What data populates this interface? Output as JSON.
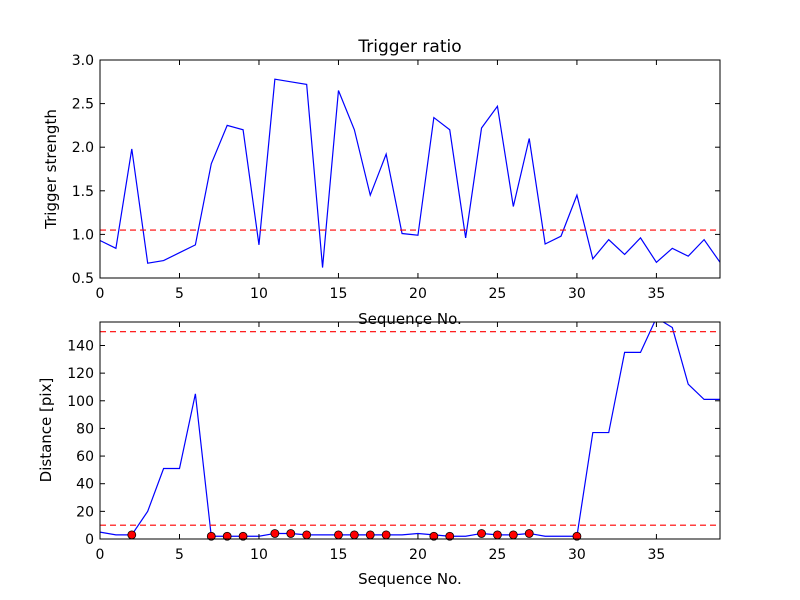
{
  "chart_data": [
    {
      "type": "line",
      "title": "Trigger ratio",
      "xlabel": "Sequence No.",
      "ylabel": "Trigger strength",
      "xlim": [
        0,
        39
      ],
      "ylim": [
        0.5,
        3.0
      ],
      "x_ticks": [
        0,
        5,
        10,
        15,
        20,
        25,
        30,
        35
      ],
      "y_ticks": [
        0.5,
        1.0,
        1.5,
        2.0,
        2.5,
        3.0
      ],
      "y_tick_labels": [
        "0.5",
        "1.0",
        "1.5",
        "2.0",
        "2.5",
        "3.0"
      ],
      "grid": false,
      "series": [
        {
          "color": "#0000ff",
          "x": [
            0,
            1,
            2,
            3,
            4,
            5,
            6,
            7,
            8,
            9,
            10,
            11,
            12,
            13,
            14,
            15,
            16,
            17,
            18,
            19,
            20,
            21,
            22,
            23,
            24,
            25,
            26,
            27,
            28,
            29,
            30,
            31,
            32,
            33,
            34,
            35,
            36,
            37,
            38,
            39
          ],
          "y": [
            0.93,
            0.84,
            1.98,
            0.67,
            0.7,
            0.79,
            0.88,
            1.81,
            2.25,
            2.2,
            0.88,
            2.78,
            2.75,
            2.72,
            0.62,
            2.65,
            2.2,
            1.45,
            1.92,
            1.01,
            0.99,
            2.34,
            2.2,
            0.96,
            2.22,
            2.47,
            1.32,
            2.1,
            0.89,
            0.98,
            1.45,
            0.72,
            0.94,
            0.77,
            0.96,
            0.68,
            0.84,
            0.75,
            0.94,
            0.68
          ]
        }
      ],
      "hlines": [
        {
          "y": 1.05,
          "color": "#ff0000",
          "style": "dashed"
        }
      ]
    },
    {
      "type": "line",
      "title": "",
      "xlabel": "Sequence No.",
      "ylabel": "Distance [pix]",
      "xlim": [
        0,
        39
      ],
      "ylim": [
        0,
        157
      ],
      "x_ticks": [
        0,
        5,
        10,
        15,
        20,
        25,
        30,
        35
      ],
      "y_ticks": [
        0,
        20,
        40,
        60,
        80,
        100,
        120,
        140
      ],
      "grid": false,
      "series": [
        {
          "color": "#0000ff",
          "x": [
            0,
            1,
            2,
            3,
            4,
            5,
            6,
            7,
            8,
            9,
            10,
            11,
            12,
            13,
            14,
            15,
            16,
            17,
            18,
            19,
            20,
            21,
            22,
            23,
            24,
            25,
            26,
            27,
            28,
            29,
            30,
            31,
            32,
            33,
            34,
            35,
            36,
            37,
            38,
            39
          ],
          "y": [
            5,
            3,
            3,
            20,
            51,
            51,
            105,
            2,
            2,
            2,
            2,
            4,
            4,
            3,
            3,
            3,
            3,
            3,
            3,
            3,
            4,
            3,
            2,
            2,
            4,
            3,
            3,
            4,
            2,
            2,
            2,
            77,
            77,
            135,
            135,
            160,
            153,
            112,
            101,
            101
          ]
        }
      ],
      "markers": {
        "color": "#ff0000",
        "x": [
          2,
          7,
          8,
          9,
          11,
          12,
          13,
          15,
          16,
          17,
          18,
          21,
          22,
          24,
          25,
          26,
          27,
          30
        ],
        "y": [
          3,
          2,
          2,
          2,
          4,
          4,
          3,
          3,
          3,
          3,
          3,
          2,
          2,
          4,
          3,
          3,
          4,
          2
        ]
      },
      "hlines": [
        {
          "y": 150,
          "color": "#ff0000",
          "style": "dashed"
        },
        {
          "y": 10,
          "color": "#ff0000",
          "style": "dashed"
        }
      ]
    }
  ]
}
